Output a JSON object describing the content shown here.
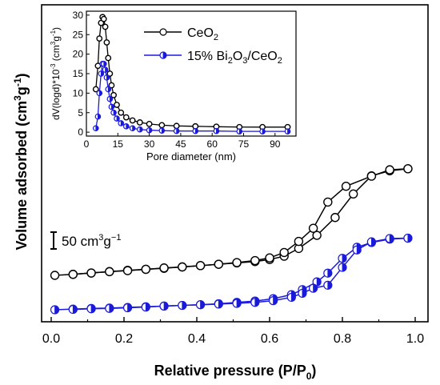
{
  "chart_data": [
    {
      "type": "line",
      "title": "",
      "xlabel": "Relative pressure (P/P0)",
      "xlabel_main": "Relative pressure (P/P",
      "xlabel_sub": "0",
      "xlabel_close": ")",
      "ylabel_main": "Volume adsorbed (cm",
      "ylabel_sup1": "3",
      "ylabel_mid": "g",
      "ylabel_sup2": "-1",
      "ylabel_close": ")",
      "xlim": [
        0.0,
        1.0
      ],
      "xticks": [
        "0.0",
        "0.2",
        "0.4",
        "0.6",
        "0.8",
        "1.0"
      ],
      "scale_bar": {
        "label_main": "50 cm",
        "label_sup1": "3",
        "label_mid": "g",
        "label_sup2": "−1",
        "value": 50
      },
      "series": [
        {
          "name": "CeO2",
          "color": "#000000",
          "marker": "open-circle",
          "adsorption": {
            "x": [
              0.01,
              0.06,
              0.11,
              0.16,
              0.21,
              0.26,
              0.31,
              0.36,
              0.41,
              0.46,
              0.51,
              0.56,
              0.6,
              0.64,
              0.68,
              0.73,
              0.78,
              0.83,
              0.88,
              0.93,
              0.98
            ],
            "y": [
              0,
              3,
              7,
              11,
              15,
              18,
              21,
              25,
              29,
              33,
              37,
              41,
              47,
              57,
              80,
              119,
              172,
              242,
              296,
              311,
              317
            ]
          },
          "desorption": {
            "x": [
              0.98,
              0.93,
              0.88,
              0.81,
              0.76,
              0.72,
              0.68,
              0.64,
              0.6,
              0.56,
              0.51,
              0.46,
              0.41,
              0.36,
              0.31,
              0.26,
              0.21,
              0.16,
              0.11,
              0.06
            ],
            "y": [
              317,
              314,
              295,
              265,
              218,
              140,
              101,
              68,
              52,
              44,
              38,
              33,
              29,
              25,
              22,
              18,
              14,
              11,
              7,
              3
            ]
          }
        },
        {
          "name": "15% Bi2O3/CeO2",
          "color": "#1a1adb",
          "marker": "half-filled-circle",
          "adsorption": {
            "x": [
              0.01,
              0.06,
              0.11,
              0.16,
              0.21,
              0.26,
              0.31,
              0.36,
              0.41,
              0.46,
              0.51,
              0.56,
              0.61,
              0.66,
              0.69,
              0.73,
              0.76,
              0.8,
              0.84,
              0.88,
              0.93,
              0.98
            ],
            "y": [
              0,
              2,
              4,
              5,
              7,
              9,
              11,
              13,
              15,
              18,
              22,
              26,
              33,
              45,
              60,
              83,
              109,
              153,
              186,
              200,
              210,
              213
            ]
          },
          "desorption": {
            "x": [
              0.98,
              0.93,
              0.88,
              0.84,
              0.8,
              0.76,
              0.72,
              0.69,
              0.66,
              0.61,
              0.56,
              0.51,
              0.46,
              0.41,
              0.36,
              0.31,
              0.26,
              0.21,
              0.16,
              0.11,
              0.06
            ],
            "y": [
              213,
              212,
              202,
              178,
              126,
              73,
              64,
              49,
              37,
              27,
              22,
              19,
              17,
              15,
              13,
              11,
              8,
              6,
              4,
              3,
              1
            ]
          }
        }
      ]
    },
    {
      "type": "line",
      "title": "",
      "xlabel": "Pore diameter (nm)",
      "ylabel_main": "dV(logd)*10",
      "ylabel_sup1": "-3",
      "ylabel_mid": " (cm",
      "ylabel_sup2": "3",
      "ylabel_mid2": "g",
      "ylabel_sup3": "-1",
      "ylabel_close": ")",
      "xlim": [
        0,
        100
      ],
      "ylim": [
        -1,
        31
      ],
      "xticks": [
        "0",
        "15",
        "30",
        "45",
        "60",
        "75",
        "90"
      ],
      "yticks": [
        "0",
        "5",
        "10",
        "15",
        "20",
        "25",
        "30"
      ],
      "legend": "top-right",
      "series": [
        {
          "name": "CeO2",
          "legend_main": "CeO",
          "legend_sub": "2",
          "color": "#000000",
          "marker": "open-circle",
          "x": [
            4.5,
            5.5,
            6.2,
            7.0,
            7.7,
            8.3,
            9.0,
            9.7,
            10.4,
            11.2,
            12.0,
            13.0,
            14.5,
            16.5,
            19,
            22,
            25.5,
            30,
            36,
            43,
            52,
            62,
            73,
            84,
            96
          ],
          "y": [
            11,
            17,
            24,
            28,
            29.5,
            29,
            27,
            23,
            19,
            15,
            12,
            9.5,
            7,
            5,
            3.8,
            3,
            2.5,
            2.1,
            1.8,
            1.6,
            1.5,
            1.4,
            1.3,
            1.3,
            1.3
          ]
        },
        {
          "name": "15% Bi2O3/CeO2",
          "legend_main": "15% Bi",
          "legend_sub1": "2",
          "legend_mid": "O",
          "legend_sub2": "3",
          "legend_mid2": "/CeO",
          "legend_sub3": "2",
          "color": "#1a1adb",
          "marker": "half-filled-circle",
          "x": [
            4.5,
            5.5,
            6.2,
            7.0,
            7.7,
            8.3,
            9.0,
            9.7,
            10.4,
            11.2,
            12.0,
            13.0,
            14.5,
            16.5,
            19,
            22,
            25.5,
            30,
            36,
            43,
            52,
            62,
            73,
            84,
            96
          ],
          "y": [
            1,
            4,
            10,
            15,
            17.5,
            17.5,
            16,
            14,
            11,
            8.5,
            6.5,
            5,
            3.5,
            2.3,
            1.5,
            1.0,
            0.7,
            0.5,
            0.4,
            0.3,
            0.3,
            0.3,
            0.2,
            0.2,
            0.2
          ]
        }
      ]
    }
  ]
}
